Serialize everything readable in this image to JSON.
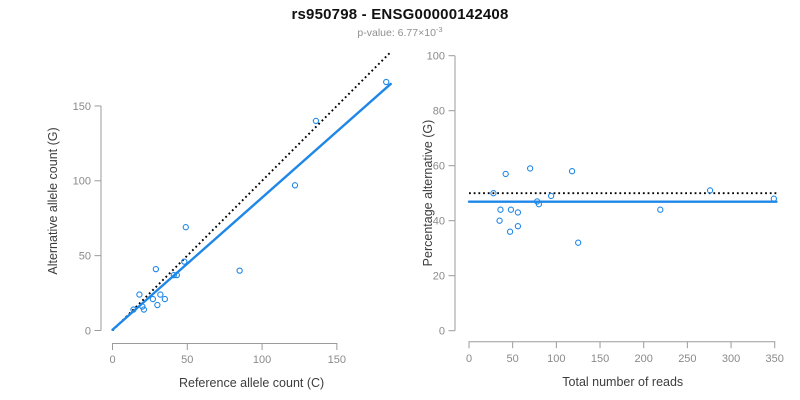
{
  "header": {
    "title": "rs950798 - ENSG00000142408",
    "subtitle_prefix": "p-value: 6.77×10",
    "subtitle_exponent": "-3"
  },
  "colors": {
    "accent_blue": "#1E87E8",
    "dotted_black": "#000000",
    "axis_gray": "#9B9B9B",
    "tick_label_gray": "#8A8A8A",
    "axis_title_dark": "#3D3D3D"
  },
  "chart_data": [
    {
      "type": "scatter",
      "title": "rs950798 - ENSG00000142408",
      "subtitle": "p-value: 6.77×10^-3",
      "xlabel": "Reference allele count (C)",
      "ylabel": "Alternative allele count (G)",
      "xlim": [
        0,
        186
      ],
      "ylim": [
        0,
        178
      ],
      "xticks": [
        0,
        50,
        100,
        150
      ],
      "yticks": [
        0,
        50,
        100,
        150
      ],
      "grid": false,
      "points": [
        [
          14,
          14
        ],
        [
          21,
          14
        ],
        [
          20,
          16
        ],
        [
          18,
          24
        ],
        [
          30,
          17
        ],
        [
          27,
          21
        ],
        [
          35,
          21
        ],
        [
          32,
          24
        ],
        [
          29,
          41
        ],
        [
          41,
          37
        ],
        [
          43,
          37
        ],
        [
          48,
          46
        ],
        [
          49,
          69
        ],
        [
          85,
          40
        ],
        [
          122,
          97
        ],
        [
          136,
          140
        ],
        [
          183,
          166
        ]
      ],
      "lines": [
        {
          "name": "identity-dotted-line",
          "style": "dotted",
          "color": "black",
          "from": [
            0,
            0
          ],
          "to": [
            186,
            186
          ]
        },
        {
          "name": "regression-line",
          "style": "solid",
          "color": "blue",
          "from": [
            0,
            0.5
          ],
          "to": [
            186,
            164.7
          ]
        }
      ]
    },
    {
      "type": "scatter",
      "xlabel": "Total number of reads",
      "ylabel": "Percentage alternative (G)",
      "xlim": [
        0,
        352
      ],
      "ylim": [
        0,
        100
      ],
      "xticks": [
        0,
        50,
        100,
        150,
        200,
        250,
        300,
        350
      ],
      "yticks": [
        0,
        20,
        40,
        60,
        80,
        100
      ],
      "grid": false,
      "points": [
        [
          28,
          50
        ],
        [
          35,
          40
        ],
        [
          36,
          44
        ],
        [
          42,
          57
        ],
        [
          47,
          36
        ],
        [
          48,
          44
        ],
        [
          56,
          38
        ],
        [
          56,
          43
        ],
        [
          70,
          59
        ],
        [
          78,
          47
        ],
        [
          80,
          46
        ],
        [
          94,
          49
        ],
        [
          118,
          58
        ],
        [
          125,
          32
        ],
        [
          219,
          44
        ],
        [
          276,
          51
        ],
        [
          349,
          48
        ]
      ],
      "lines": [
        {
          "name": "expected-50pct-dotted-line",
          "style": "dotted",
          "color": "black",
          "y": 50
        },
        {
          "name": "observed-mean-line",
          "style": "solid",
          "color": "blue",
          "y": 46.9
        }
      ]
    }
  ]
}
